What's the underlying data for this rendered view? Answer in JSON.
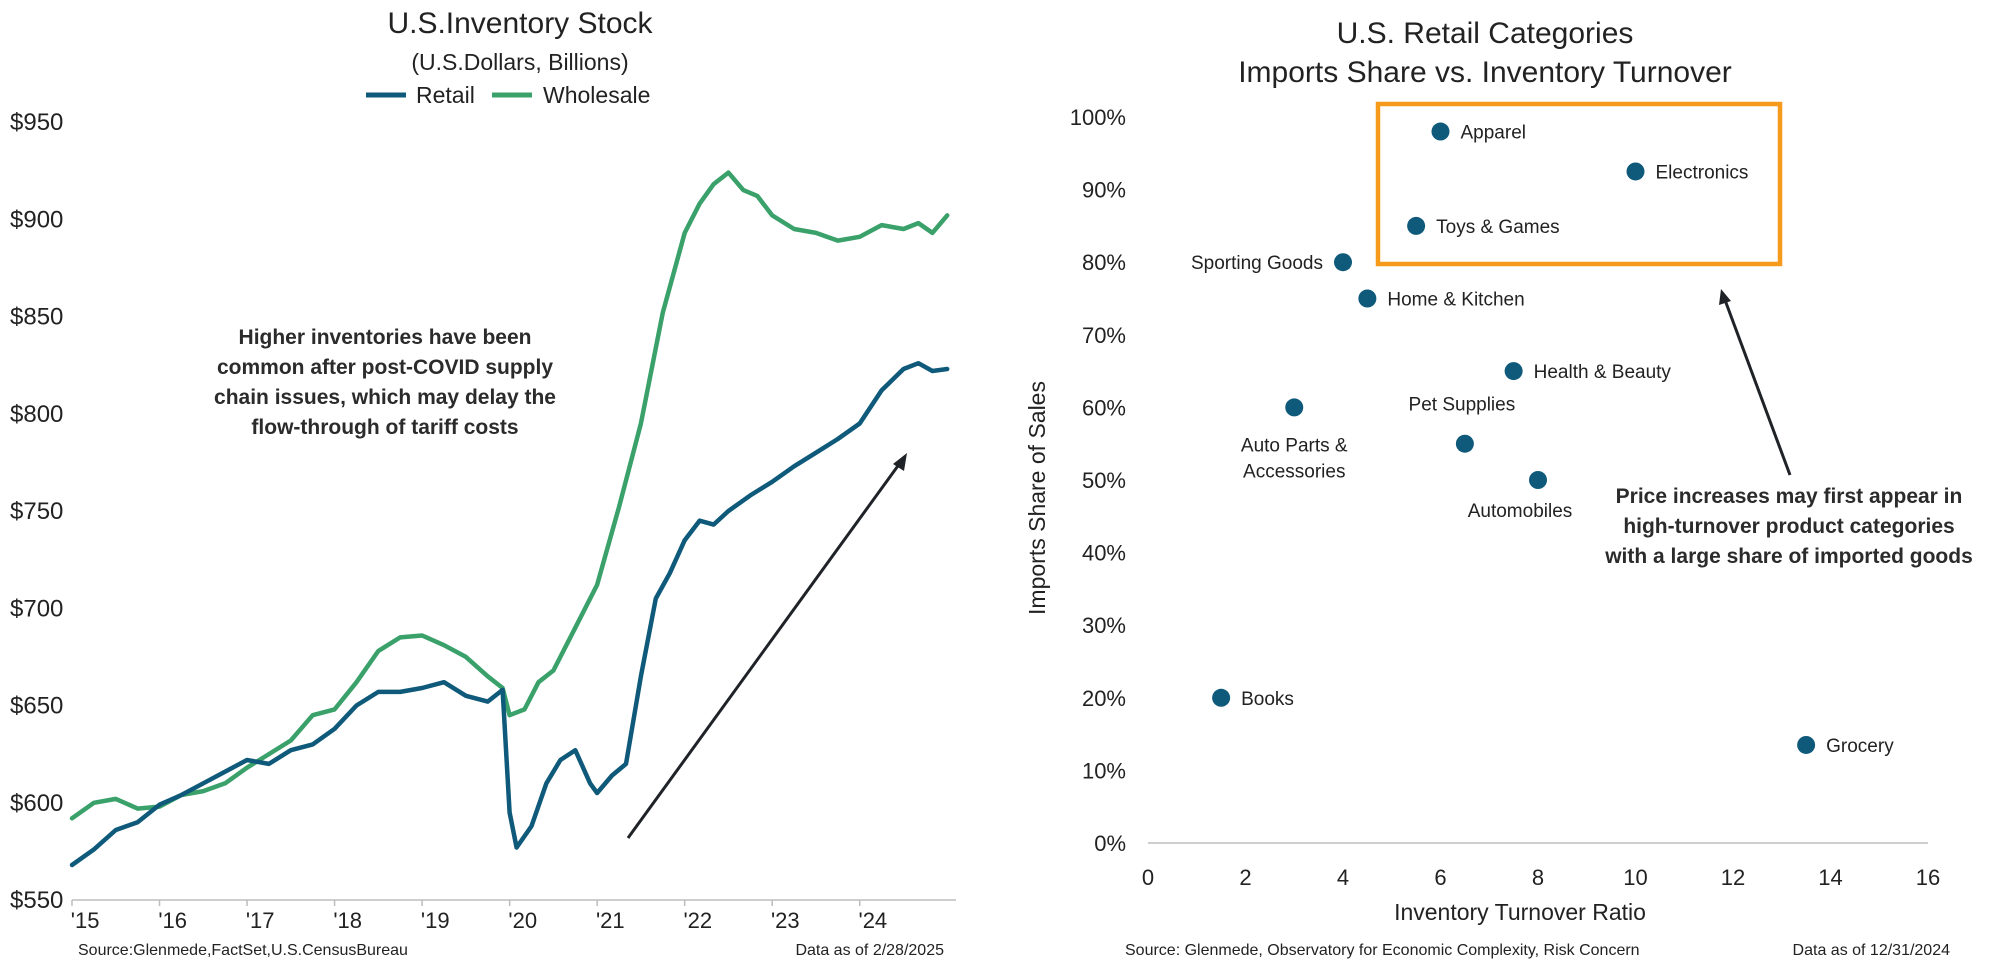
{
  "colors": {
    "retail": "#0f5a7a",
    "wholesale": "#3aa16b",
    "point": "#0f5a7a",
    "highlight_box": "#f59a1a",
    "arrow": "#1f2328"
  },
  "left": {
    "title": "U.S.Inventory Stock",
    "subtitle": "(U.S.Dollars, Billions)",
    "annotation": [
      "Higher inventories have been",
      "common after post-COVID supply",
      "chain issues, which may delay the",
      "flow-through of tariff costs"
    ],
    "source": "Source:Glenmede,FactSet,U.S.CensusBureau",
    "date_note": "Data as of 2/28/2025"
  },
  "right": {
    "title_line1": "U.S. Retail Categories",
    "title_line2": "Imports Share vs. Inventory Turnover",
    "annotation": [
      "Price increases may first appear in",
      "high-turnover product categories",
      "with a large share of imported goods"
    ],
    "source": "Source: Glenmede, Observatory for Economic Complexity, Risk Concern",
    "date_note": "Data as of 12/31/2024"
  },
  "chart_data": [
    {
      "type": "line",
      "title": "U.S.Inventory Stock",
      "subtitle": "(U.S.Dollars, Billions)",
      "y_ticks": [
        "$550",
        "$600",
        "$650",
        "$700",
        "$750",
        "$800",
        "$850",
        "$900",
        "$950"
      ],
      "ylim": [
        550,
        950
      ],
      "x_ticks": [
        "'15",
        "'16",
        "'17",
        "'18",
        "'19",
        "'20",
        "'21",
        "'22",
        "'23",
        "'24"
      ],
      "xlim": [
        2015.0,
        2025.1
      ],
      "legend_position": "top-center",
      "series": [
        {
          "name": "Retail",
          "x": [
            2015.0,
            2015.25,
            2015.5,
            2015.75,
            2016.0,
            2016.25,
            2016.5,
            2016.75,
            2017.0,
            2017.25,
            2017.5,
            2017.75,
            2018.0,
            2018.25,
            2018.5,
            2018.75,
            2019.0,
            2019.25,
            2019.5,
            2019.75,
            2019.92,
            2020.0,
            2020.08,
            2020.25,
            2020.42,
            2020.58,
            2020.75,
            2020.92,
            2021.0,
            2021.17,
            2021.33,
            2021.5,
            2021.67,
            2021.83,
            2022.0,
            2022.17,
            2022.33,
            2022.5,
            2022.75,
            2023.0,
            2023.25,
            2023.5,
            2023.75,
            2024.0,
            2024.25,
            2024.5,
            2024.67,
            2024.83,
            2025.0
          ],
          "y": [
            568,
            576,
            586,
            590,
            599,
            604,
            610,
            616,
            622,
            620,
            627,
            630,
            638,
            650,
            657,
            657,
            659,
            662,
            655,
            652,
            658,
            595,
            577,
            588,
            610,
            622,
            627,
            610,
            605,
            614,
            620,
            665,
            705,
            718,
            735,
            745,
            743,
            750,
            758,
            765,
            773,
            780,
            787,
            795,
            812,
            823,
            826,
            822,
            823
          ]
        },
        {
          "name": "Wholesale",
          "x": [
            2015.0,
            2015.25,
            2015.5,
            2015.75,
            2016.0,
            2016.25,
            2016.5,
            2016.75,
            2017.0,
            2017.25,
            2017.5,
            2017.75,
            2018.0,
            2018.25,
            2018.5,
            2018.75,
            2019.0,
            2019.25,
            2019.5,
            2019.75,
            2019.92,
            2020.0,
            2020.17,
            2020.33,
            2020.5,
            2020.75,
            2021.0,
            2021.25,
            2021.5,
            2021.75,
            2022.0,
            2022.17,
            2022.33,
            2022.5,
            2022.67,
            2022.83,
            2023.0,
            2023.25,
            2023.5,
            2023.75,
            2024.0,
            2024.25,
            2024.5,
            2024.67,
            2024.83,
            2025.0
          ],
          "y": [
            592,
            600,
            602,
            597,
            598,
            604,
            606,
            610,
            618,
            625,
            632,
            645,
            648,
            662,
            678,
            685,
            686,
            681,
            675,
            665,
            659,
            645,
            648,
            662,
            668,
            690,
            712,
            752,
            795,
            852,
            893,
            908,
            918,
            924,
            915,
            912,
            902,
            895,
            893,
            889,
            891,
            897,
            895,
            898,
            893,
            902
          ]
        }
      ]
    },
    {
      "type": "scatter",
      "title": "U.S. Retail Categories Imports Share vs. Inventory Turnover",
      "xlabel": "Inventory Turnover Ratio",
      "ylabel": "Imports Share of Sales",
      "xlim": [
        0,
        16
      ],
      "ylim": [
        0,
        100
      ],
      "x_ticks": [
        "0",
        "2",
        "4",
        "6",
        "8",
        "10",
        "12",
        "14",
        "16"
      ],
      "y_ticks": [
        "0%",
        "10%",
        "20%",
        "30%",
        "40%",
        "50%",
        "60%",
        "70%",
        "80%",
        "90%",
        "100%"
      ],
      "points": [
        {
          "label": "Apparel",
          "x": 6.0,
          "y": 98
        },
        {
          "label": "Electronics",
          "x": 10.0,
          "y": 92.5
        },
        {
          "label": "Toys & Games",
          "x": 5.5,
          "y": 85
        },
        {
          "label": "Sporting Goods",
          "x": 4.0,
          "y": 80
        },
        {
          "label": "Home & Kitchen",
          "x": 4.5,
          "y": 75
        },
        {
          "label": "Health & Beauty",
          "x": 7.5,
          "y": 65
        },
        {
          "label": "Auto Parts & Accessories",
          "x": 3.0,
          "y": 60
        },
        {
          "label": "Pet Supplies",
          "x": 6.5,
          "y": 55
        },
        {
          "label": "Automobiles",
          "x": 8.0,
          "y": 50
        },
        {
          "label": "Books",
          "x": 1.5,
          "y": 20
        },
        {
          "label": "Grocery",
          "x": 13.5,
          "y": 13.5
        }
      ]
    }
  ]
}
